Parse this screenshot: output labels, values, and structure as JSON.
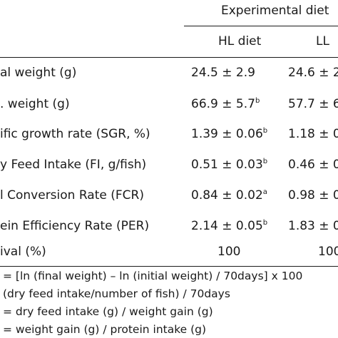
{
  "header": {
    "group_label": "Experimental diet",
    "col1": "HL diet",
    "col2": "LL"
  },
  "rows": [
    {
      "label": "al weight (g)",
      "v1": "24.5 ± 2.9",
      "sup1": "",
      "v2": "24.6 ± 2",
      "sup2": ""
    },
    {
      "label": ". weight (g)",
      "v1": "66.9 ± 5.7",
      "sup1": "b",
      "v2": "57.7 ± 6",
      "sup2": ""
    },
    {
      "label": "ific growth rate (SGR, %)",
      "v1": "1.39 ± 0.06",
      "sup1": "b",
      "v2": "1.18 ± 0",
      "sup2": ""
    },
    {
      "label": "y Feed Intake (FI, g/fish)",
      "v1": "0.51 ± 0.03",
      "sup1": "b",
      "v2": "0.46 ± 0",
      "sup2": ""
    },
    {
      "label": "l Conversion Rate (FCR)",
      "v1": "0.84 ± 0.02",
      "sup1": "a",
      "v2": "0.98 ± 0",
      "sup2": ""
    },
    {
      "label": "ein Efficiency Rate (PER)",
      "v1": "2.14 ± 0.05",
      "sup1": "b",
      "v2": "1.83 ± 0",
      "sup2": ""
    },
    {
      "label": "ival (%)",
      "v1": "100",
      "sup1": "",
      "v2": "100",
      "sup2": ""
    }
  ],
  "footnotes": [
    "= [ln (final weight) – ln (initial weight) / 70days] x 100",
    "(dry feed intake/number of fish) / 70days",
    "= dry feed intake (g) / weight gain (g)",
    "= weight gain (g) / protein intake (g)"
  ]
}
